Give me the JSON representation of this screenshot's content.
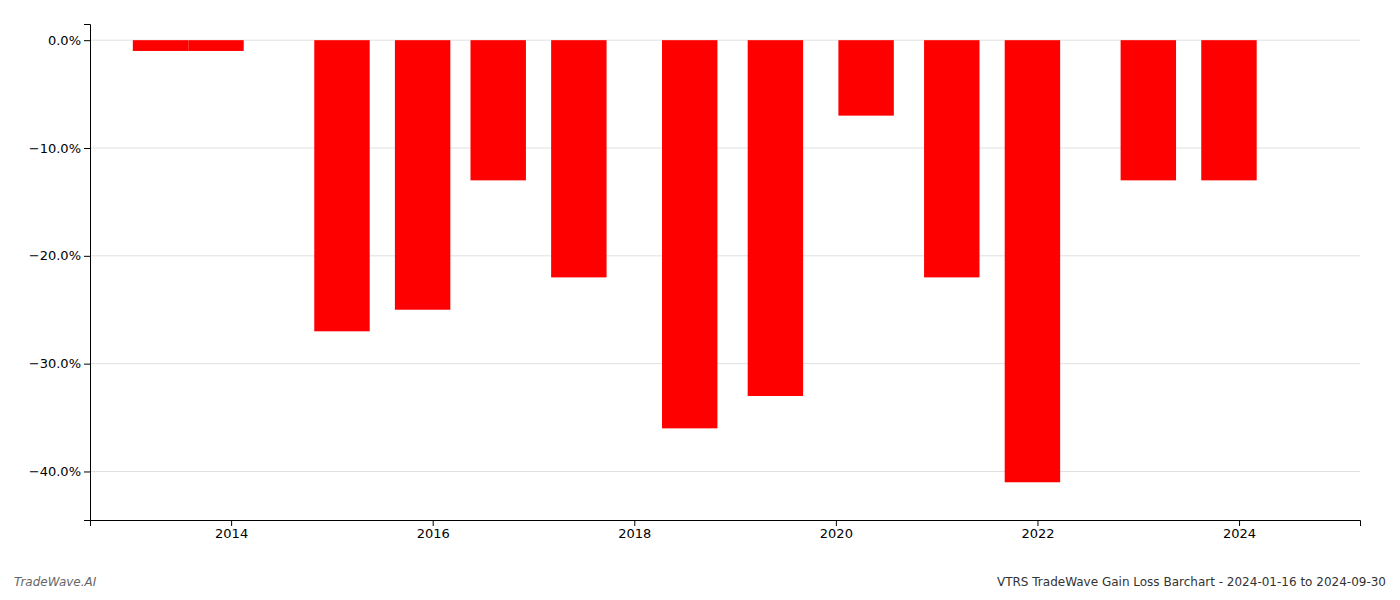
{
  "chart_data": {
    "type": "bar",
    "title": "VTRS TradeWave Gain Loss Barchart - 2024-01-16 to 2024-09-30",
    "annotations": [
      "TradeWave.AI"
    ],
    "x": [
      2013.3,
      2013.85,
      2015.1,
      2015.9,
      2016.65,
      2017.45,
      2018.55,
      2019.4,
      2020.3,
      2021.15,
      2021.95,
      2023.1,
      2023.9
    ],
    "values": [
      -0.01,
      -0.01,
      -0.27,
      -0.25,
      -0.13,
      -0.22,
      -0.36,
      -0.33,
      -0.07,
      -0.22,
      -0.41,
      -0.13,
      -0.13
    ],
    "color": "#ff0000",
    "xlim": [
      2012.6,
      2025.2
    ],
    "xticks": [
      2014,
      2016,
      2018,
      2020,
      2022,
      2024
    ],
    "ylim": [
      -0.445,
      0.015
    ],
    "yticks": [
      {
        "value": 0.0,
        "label": "0.0%"
      },
      {
        "value": -0.1,
        "label": "−10.0%"
      },
      {
        "value": -0.2,
        "label": "−20.0%"
      },
      {
        "value": -0.3,
        "label": "−30.0%"
      },
      {
        "value": -0.4,
        "label": "−40.0%"
      }
    ],
    "grid": true
  }
}
